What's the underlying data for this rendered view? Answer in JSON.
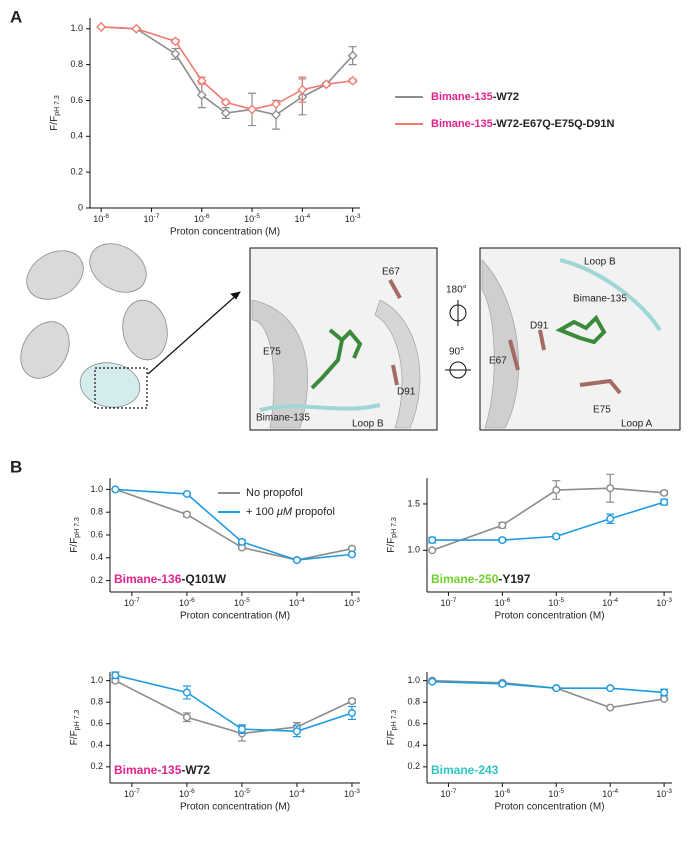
{
  "panel_labels": [
    "A",
    "B"
  ],
  "structure": {
    "labels": [
      "E67",
      "E75",
      "Bimane-135",
      "D91",
      "Loop B",
      "180°",
      "90°",
      "Loop B",
      "Bimane-135",
      "E67",
      "D91",
      "E75",
      "Loop A"
    ]
  },
  "legend_text": {
    "no": "No propofol",
    "plus": "+ 100 ",
    "mu": "μM",
    "rest": " propofol"
  },
  "chart_data": [
    {
      "type": "line",
      "xlog": true,
      "marker": "diamond",
      "x": [
        1e-08,
        5e-08,
        3e-07,
        1e-06,
        3e-06,
        1e-05,
        3e-05,
        0.0001,
        0.0003,
        0.001
      ],
      "series": [
        {
          "name": "Bimane-135-W72",
          "highlight": "Bimane-135",
          "highlight_color": "#e2238c",
          "color": "#8c8c8c",
          "values": [
            1.01,
            1.0,
            0.86,
            0.63,
            0.53,
            0.55,
            0.52,
            0.62,
            0.69,
            0.85
          ],
          "errors": [
            0.0,
            0.0,
            0.03,
            0.07,
            0.03,
            0.09,
            0.08,
            0.1,
            0.01,
            0.05
          ]
        },
        {
          "name": "Bimane-135-W72-E67Q-E75Q-D91N",
          "highlight": "Bimane-135",
          "highlight_color": "#e2238c",
          "color": "#f07a70",
          "values": [
            1.01,
            1.0,
            0.93,
            0.71,
            0.59,
            0.55,
            0.58,
            0.66,
            0.69,
            0.71
          ],
          "errors": [
            0.0,
            0.0,
            0.01,
            0.02,
            0.01,
            0.0,
            0.0,
            0.07,
            0.0,
            0.01
          ]
        }
      ],
      "xlim": [
        6e-09,
        0.0014
      ],
      "ylim": [
        0,
        1.06
      ],
      "xticks": [
        {
          "value": 1e-08,
          "label": "10-8"
        },
        {
          "value": 1e-07,
          "label": "10-7"
        },
        {
          "value": 1e-06,
          "label": "10-6"
        },
        {
          "value": 1e-05,
          "label": "10-5"
        },
        {
          "value": 0.0001,
          "label": "10-4"
        },
        {
          "value": 0.001,
          "label": "10-3"
        }
      ],
      "yticks": [
        0,
        0.2,
        0.4,
        0.6,
        0.8,
        {
          "value": 1,
          "label": "1.0"
        }
      ],
      "x_label": "Proton concentration (M)",
      "y_label": "F/F",
      "y_label_sub": "pH 7.3"
    },
    {
      "type": "line",
      "xlog": true,
      "marker": "circle",
      "x": [
        5e-08,
        1e-06,
        1e-05,
        0.0001,
        0.001
      ],
      "series": [
        {
          "name": "No propofol",
          "color": "#8c8c8c",
          "values": [
            1.0,
            0.78,
            0.49,
            0.38,
            0.48
          ],
          "errors": [
            0.0,
            0.02,
            0.01,
            0.01,
            0.01
          ]
        },
        {
          "color": "#1e9be0",
          "values": [
            1.0,
            0.96,
            0.54,
            0.38,
            0.43
          ],
          "errors": [
            0.0,
            0.01,
            0.02,
            0.01,
            0.01
          ]
        }
      ],
      "xlim": [
        4e-08,
        0.0014
      ],
      "ylim": [
        0.1,
        1.1
      ],
      "xticks": [
        {
          "value": 1e-07,
          "label": "10-7"
        },
        {
          "value": 1e-06,
          "label": "10-6"
        },
        {
          "value": 1e-05,
          "label": "10-5"
        },
        {
          "value": 0.0001,
          "label": "10-4"
        },
        {
          "value": 0.001,
          "label": "10-3"
        }
      ],
      "yticks": [
        0.2,
        0.4,
        0.6,
        0.8,
        {
          "value": 1,
          "label": "1.0"
        }
      ],
      "x_label": "Proton concentration (M)",
      "y_label": "F/F",
      "y_label_sub": "pH 7.3",
      "label": "Bimane-136-Q101W",
      "label_highlight": "Bimane-136",
      "label_color": "#e2238c"
    },
    {
      "type": "line",
      "xlog": true,
      "marker": "circle",
      "x": [
        5e-08,
        1e-06,
        1e-05,
        0.0001,
        0.001
      ],
      "series": [
        {
          "color": "#8c8c8c",
          "values": [
            1.0,
            1.27,
            1.65,
            1.67,
            1.62
          ],
          "errors": [
            0.0,
            0.03,
            0.1,
            0.15,
            0.02
          ]
        },
        {
          "color": "#1e9be0",
          "values": [
            1.11,
            1.11,
            1.15,
            1.34,
            1.52
          ],
          "errors": [
            0.03,
            0.02,
            0.02,
            0.05,
            0.03
          ]
        }
      ],
      "xlim": [
        4e-08,
        0.0014
      ],
      "ylim": [
        0.55,
        1.78
      ],
      "xticks": [
        {
          "value": 1e-07,
          "label": "10-7"
        },
        {
          "value": 1e-06,
          "label": "10-6"
        },
        {
          "value": 1e-05,
          "label": "10-5"
        },
        {
          "value": 0.0001,
          "label": "10-4"
        },
        {
          "value": 0.001,
          "label": "10-3"
        }
      ],
      "yticks": [
        {
          "value": 1,
          "label": "1.0"
        },
        1.5
      ],
      "x_label": "Proton concentration (M)",
      "y_label": "F/F",
      "y_label_sub": "pH 7.3",
      "label": "Bimane-250-Y197",
      "label_highlight": "Bimane-250",
      "label_color": "#6fcf2b"
    },
    {
      "type": "line",
      "xlog": true,
      "marker": "circle",
      "x": [
        5e-08,
        1e-06,
        1e-05,
        0.0001,
        0.001
      ],
      "series": [
        {
          "color": "#8c8c8c",
          "values": [
            1.0,
            0.66,
            0.51,
            0.57,
            0.81
          ],
          "errors": [
            0.02,
            0.04,
            0.07,
            0.04,
            0.02
          ]
        },
        {
          "color": "#1e9be0",
          "values": [
            1.05,
            0.89,
            0.55,
            0.53,
            0.7
          ],
          "errors": [
            0.03,
            0.06,
            0.04,
            0.05,
            0.06
          ]
        }
      ],
      "xlim": [
        4e-08,
        0.0014
      ],
      "ylim": [
        0.05,
        1.08
      ],
      "xticks": [
        {
          "value": 1e-07,
          "label": "10-7"
        },
        {
          "value": 1e-06,
          "label": "10-6"
        },
        {
          "value": 1e-05,
          "label": "10-5"
        },
        {
          "value": 0.0001,
          "label": "10-4"
        },
        {
          "value": 0.001,
          "label": "10-3"
        }
      ],
      "yticks": [
        0.2,
        0.4,
        0.6,
        0.8,
        {
          "value": 1,
          "label": "1.0"
        }
      ],
      "x_label": "Proton concentration (M)",
      "y_label": "F/F",
      "y_label_sub": "pH 7.3",
      "label": "Bimane-135-W72",
      "label_highlight": "Bimane-135",
      "label_color": "#e2238c"
    },
    {
      "type": "line",
      "xlog": true,
      "marker": "circle",
      "x": [
        5e-08,
        1e-06,
        1e-05,
        0.0001,
        0.001
      ],
      "series": [
        {
          "color": "#8c8c8c",
          "values": [
            1.0,
            0.98,
            0.93,
            0.75,
            0.83
          ],
          "errors": [
            0.01,
            0.01,
            0.01,
            0.01,
            0.01
          ]
        },
        {
          "color": "#1e9be0",
          "values": [
            0.99,
            0.97,
            0.93,
            0.93,
            0.89
          ],
          "errors": [
            0.01,
            0.02,
            0.01,
            0.01,
            0.03
          ]
        }
      ],
      "xlim": [
        4e-08,
        0.0014
      ],
      "ylim": [
        0.05,
        1.08
      ],
      "xticks": [
        {
          "value": 1e-07,
          "label": "10-7"
        },
        {
          "value": 1e-06,
          "label": "10-6"
        },
        {
          "value": 1e-05,
          "label": "10-5"
        },
        {
          "value": 0.0001,
          "label": "10-4"
        },
        {
          "value": 0.001,
          "label": "10-3"
        }
      ],
      "yticks": [
        0.2,
        0.4,
        0.6,
        0.8,
        {
          "value": 1,
          "label": "1.0"
        }
      ],
      "x_label": "Proton concentration (M)",
      "y_label": "F/F",
      "y_label_sub": "pH 7.3",
      "label": "Bimane-243",
      "label_highlight": "Bimane-243",
      "label_color": "#2ec4c4"
    }
  ]
}
